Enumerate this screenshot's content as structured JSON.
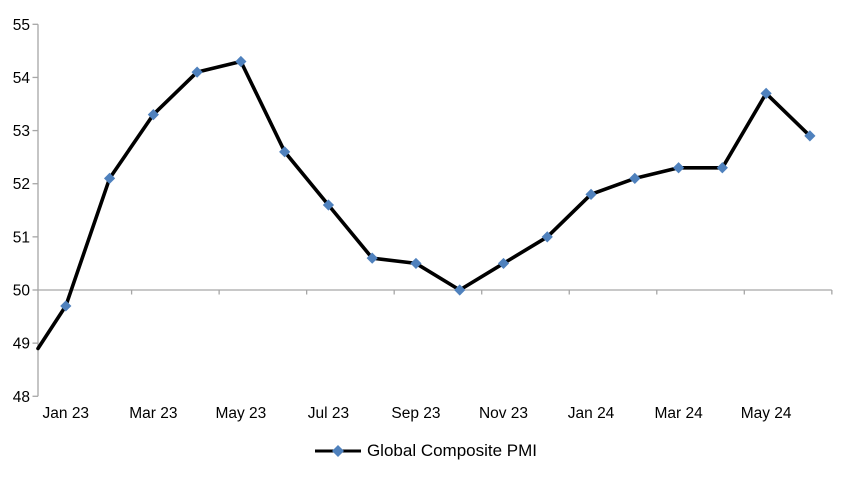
{
  "chart_data": {
    "type": "line",
    "title": "",
    "categories": [
      "Jan 23",
      "Feb 23",
      "Mar 23",
      "Apr 23",
      "May 23",
      "Jun 23",
      "Jul 23",
      "Aug 23",
      "Sep 23",
      "Oct 23",
      "Nov 23",
      "Dec 23",
      "Jan 24",
      "Feb 24",
      "Mar 24",
      "Apr 24",
      "May 24",
      "Jun 24"
    ],
    "series": [
      {
        "name": "Global Composite PMI",
        "values": [
          49.7,
          52.1,
          53.3,
          54.1,
          54.3,
          52.6,
          51.6,
          50.6,
          50.5,
          50.0,
          50.5,
          51.0,
          51.8,
          52.1,
          52.3,
          52.3,
          53.7,
          52.9
        ]
      }
    ],
    "edge_entry_value": 48.9,
    "x_axis_labels": [
      "Jan 23",
      "Mar 23",
      "May 23",
      "Jul 23",
      "Sep 23",
      "Nov 23",
      "Jan 24",
      "Mar 24",
      "May 24"
    ],
    "x_label_every": 2,
    "y_tick_labels": [
      "48",
      "49",
      "50",
      "51",
      "52",
      "53",
      "54",
      "55"
    ],
    "ylim": [
      48,
      55
    ],
    "y_tick_step": 1,
    "axis_crosses_at": 50,
    "grid": false,
    "legend_position": "bottom-center",
    "marker_shape": "diamond",
    "colors": {
      "line": "#000000",
      "marker": "#4F81BD",
      "axis": "#A6A6A6",
      "text": "#000000",
      "background": "#FFFFFF"
    }
  }
}
